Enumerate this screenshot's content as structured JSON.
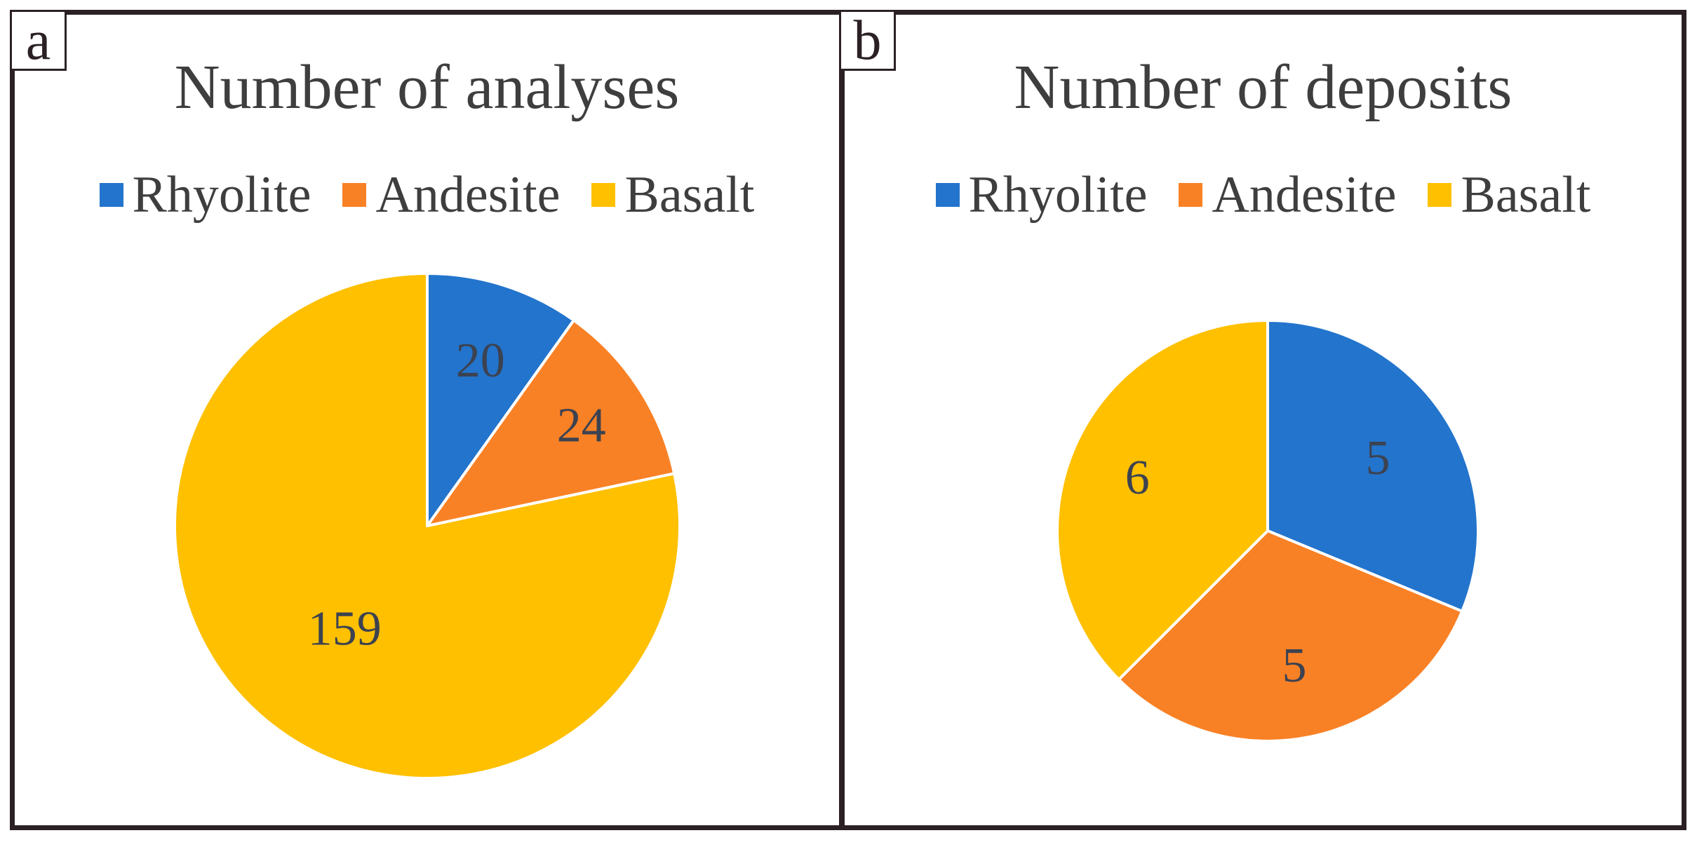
{
  "chart_data": [
    {
      "type": "pie",
      "panel_label": "a",
      "title": "Number of analyses",
      "categories": [
        "Rhyolite",
        "Andesite",
        "Basalt"
      ],
      "values": [
        20,
        24,
        159
      ],
      "colors": [
        "#2374CC",
        "#F98125",
        "#FFC000"
      ],
      "legend_position": "top",
      "start_angle_deg": 0,
      "direction": "clockwise",
      "data_labels_shown": true
    },
    {
      "type": "pie",
      "panel_label": "b",
      "title": "Number of deposits",
      "categories": [
        "Rhyolite",
        "Andesite",
        "Basalt"
      ],
      "values": [
        5,
        5,
        6
      ],
      "colors": [
        "#2374CC",
        "#F98125",
        "#FFC000"
      ],
      "legend_position": "top",
      "start_angle_deg": 0,
      "direction": "clockwise",
      "data_labels_shown": true
    }
  ],
  "colors": {
    "frame_border": "#2B2124",
    "title_text": "#3E3E3E",
    "legend_text": "#3E3E3E",
    "slice_label_text": "#3C4250",
    "background": "#FFFFFF"
  }
}
